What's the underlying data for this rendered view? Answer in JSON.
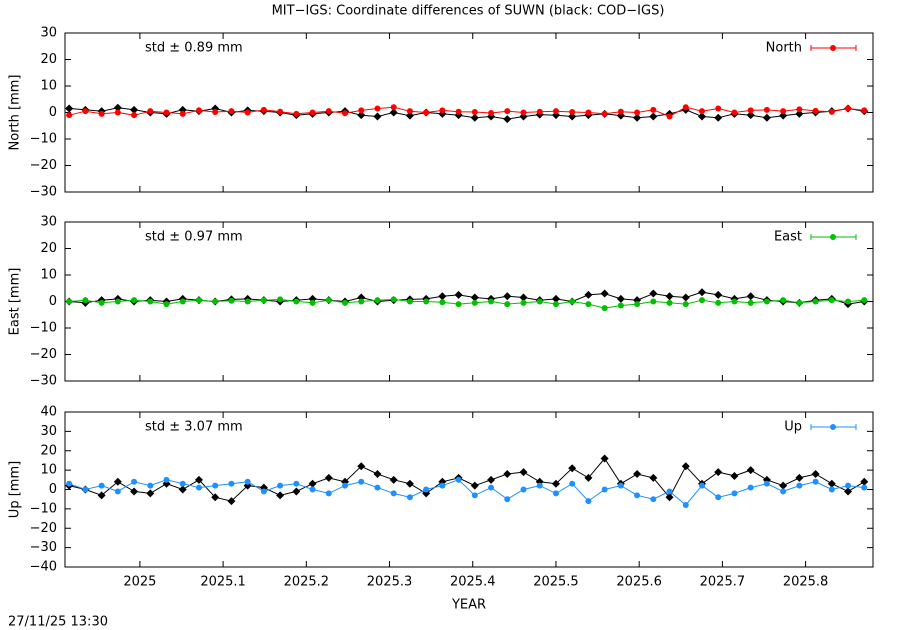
{
  "footer": "27/11/25 13:30",
  "chart_data": [
    {
      "type": "line",
      "title": "MIT−IGS: Coordinate differences of SUWN (black: COD−IGS)",
      "ylabel": "North [mm]",
      "annotation": "std ± 0.89 mm",
      "xlim": [
        2024.91,
        2025.881
      ],
      "xticks": [
        2025,
        2025.1,
        2025.2,
        2025.3,
        2025.4,
        2025.5,
        2025.6,
        2025.7,
        2025.8
      ],
      "ylim": [
        -30,
        30
      ],
      "yticks": [
        {
          "value": -30,
          "label": "−30"
        },
        {
          "value": -20,
          "label": "−20"
        },
        {
          "value": -10,
          "label": "−10"
        },
        0,
        10,
        20,
        30
      ],
      "legend": "top-right",
      "x": [
        2024.915,
        2024.9345,
        2024.954,
        2024.9735,
        2024.993,
        2025.0125,
        2025.032,
        2025.0515,
        2025.071,
        2025.0905,
        2025.11,
        2025.1295,
        2025.149,
        2025.1685,
        2025.188,
        2025.2075,
        2025.227,
        2025.2465,
        2025.266,
        2025.2855,
        2025.305,
        2025.3245,
        2025.344,
        2025.3635,
        2025.383,
        2025.4025,
        2025.422,
        2025.4415,
        2025.461,
        2025.4805,
        2025.5,
        2025.5195,
        2025.539,
        2025.5585,
        2025.578,
        2025.5975,
        2025.617,
        2025.6365,
        2025.656,
        2025.6755,
        2025.695,
        2025.7145,
        2025.734,
        2025.7535,
        2025.773,
        2025.7925,
        2025.812,
        2025.8315,
        2025.851,
        2025.8705
      ],
      "series": [
        {
          "color": "#000000",
          "values": [
            1.5,
            1,
            0.5,
            1.8,
            1,
            0,
            -0.5,
            1,
            0.5,
            1.5,
            0,
            0.8,
            0.5,
            0,
            -1,
            -0.5,
            0,
            0.5,
            -1,
            -1.5,
            0,
            -1.2,
            0,
            -0.5,
            -1,
            -2,
            -1.5,
            -2.5,
            -1.5,
            -0.8,
            -1,
            -1.5,
            -1,
            -0.5,
            -1.2,
            -2,
            -1.5,
            -0.5,
            1,
            -1.5,
            -2,
            -0.5,
            -1,
            -2,
            -1.2,
            -0.5,
            0,
            0.5,
            1.5,
            0.5
          ]
        },
        {
          "name": "North",
          "color": "#ff0000",
          "values": [
            -1,
            0.5,
            -0.5,
            0,
            -1,
            0.5,
            0,
            -0.5,
            0.8,
            0.2,
            0.5,
            0,
            1,
            0.3,
            -0.5,
            0,
            0.5,
            -0.3,
            0.8,
            1.5,
            2,
            0.5,
            0,
            0.8,
            0.3,
            0.2,
            -0.2,
            0.5,
            0,
            0.3,
            0.5,
            0.2,
            0,
            -0.5,
            0.3,
            0,
            1,
            -1.5,
            2,
            0.5,
            1.5,
            0,
            0.8,
            1,
            0.5,
            1.2,
            0.6,
            0.3,
            1.5,
            0.8
          ]
        }
      ]
    },
    {
      "type": "line",
      "ylabel": "East [mm]",
      "annotation": "std ± 0.97 mm",
      "xlim": [
        2024.91,
        2025.881
      ],
      "xticks": [
        2025,
        2025.1,
        2025.2,
        2025.3,
        2025.4,
        2025.5,
        2025.6,
        2025.7,
        2025.8
      ],
      "ylim": [
        -30,
        30
      ],
      "yticks": [
        {
          "value": -30,
          "label": "−30"
        },
        {
          "value": -20,
          "label": "−20"
        },
        {
          "value": -10,
          "label": "−10"
        },
        0,
        10,
        20,
        30
      ],
      "legend": "top-right",
      "x": [
        2024.915,
        2024.9345,
        2024.954,
        2024.9735,
        2024.993,
        2025.0125,
        2025.032,
        2025.0515,
        2025.071,
        2025.0905,
        2025.11,
        2025.1295,
        2025.149,
        2025.1685,
        2025.188,
        2025.2075,
        2025.227,
        2025.2465,
        2025.266,
        2025.2855,
        2025.305,
        2025.3245,
        2025.344,
        2025.3635,
        2025.383,
        2025.4025,
        2025.422,
        2025.4415,
        2025.461,
        2025.4805,
        2025.5,
        2025.5195,
        2025.539,
        2025.5585,
        2025.578,
        2025.5975,
        2025.617,
        2025.6365,
        2025.656,
        2025.6755,
        2025.695,
        2025.7145,
        2025.734,
        2025.7535,
        2025.773,
        2025.7925,
        2025.812,
        2025.8315,
        2025.851,
        2025.8705
      ],
      "series": [
        {
          "color": "#000000",
          "values": [
            0,
            -0.5,
            0.5,
            1,
            0,
            0.5,
            0,
            1,
            0.5,
            0,
            0.8,
            1,
            0.5,
            0,
            0.5,
            1,
            0.5,
            0,
            1.5,
            0,
            0.5,
            0.8,
            1,
            2,
            2.5,
            1.5,
            1,
            2,
            1.5,
            0.5,
            1,
            0,
            2.5,
            3,
            1,
            0.5,
            3,
            2,
            1.5,
            3.5,
            2.5,
            1,
            2,
            0.5,
            0,
            -0.5,
            0.5,
            1,
            -1,
            0
          ]
        },
        {
          "name": "East",
          "color": "#00c000",
          "values": [
            0,
            0.5,
            -0.5,
            0,
            0.5,
            0,
            -1,
            0,
            0.5,
            0,
            0.3,
            0,
            0.5,
            0.8,
            0,
            -0.5,
            0.5,
            -0.5,
            0,
            0.5,
            0.8,
            0,
            0,
            -0.3,
            -1,
            -0.5,
            0,
            -1,
            -0.5,
            0,
            -1,
            0,
            -1,
            -2.5,
            -1.5,
            -1,
            0,
            -0.5,
            -1,
            0.5,
            -0.5,
            0,
            -0.5,
            0,
            0.5,
            -0.5,
            0,
            0.5,
            0,
            0.5
          ]
        }
      ]
    },
    {
      "type": "line",
      "ylabel": "Up [mm]",
      "xlabel": "YEAR",
      "annotation": "std ± 3.07 mm",
      "xlim": [
        2024.91,
        2025.881
      ],
      "xticks": [
        2025,
        2025.1,
        2025.2,
        2025.3,
        2025.4,
        2025.5,
        2025.6,
        2025.7,
        2025.8
      ],
      "xtick_labels": true,
      "ylim": [
        -40,
        40
      ],
      "yticks": [
        {
          "value": -40,
          "label": "−40"
        },
        {
          "value": -30,
          "label": "−30"
        },
        {
          "value": -20,
          "label": "−20"
        },
        {
          "value": -10,
          "label": "−10"
        },
        0,
        10,
        20,
        30,
        40
      ],
      "legend": "top-right",
      "x": [
        2024.915,
        2024.9345,
        2024.954,
        2024.9735,
        2024.993,
        2025.0125,
        2025.032,
        2025.0515,
        2025.071,
        2025.0905,
        2025.11,
        2025.1295,
        2025.149,
        2025.1685,
        2025.188,
        2025.2075,
        2025.227,
        2025.2465,
        2025.266,
        2025.2855,
        2025.305,
        2025.3245,
        2025.344,
        2025.3635,
        2025.383,
        2025.4025,
        2025.422,
        2025.4415,
        2025.461,
        2025.4805,
        2025.5,
        2025.5195,
        2025.539,
        2025.5585,
        2025.578,
        2025.5975,
        2025.617,
        2025.6365,
        2025.656,
        2025.6755,
        2025.695,
        2025.7145,
        2025.734,
        2025.7535,
        2025.773,
        2025.7925,
        2025.812,
        2025.8315,
        2025.851,
        2025.8705
      ],
      "series": [
        {
          "color": "#000000",
          "values": [
            2,
            0,
            -3,
            4,
            -1,
            -2,
            3,
            0,
            5,
            -4,
            -6,
            2,
            1,
            -3,
            -1,
            3,
            6,
            4,
            12,
            8,
            5,
            3,
            -2,
            4,
            6,
            2,
            5,
            8,
            9,
            4,
            3,
            11,
            6,
            16,
            3,
            8,
            6,
            -4,
            12,
            3,
            9,
            7,
            10,
            5,
            2,
            6,
            8,
            3,
            -1,
            4
          ]
        },
        {
          "name": "Up",
          "color": "#1e90ff",
          "values": [
            3,
            0,
            2,
            -1,
            4,
            2,
            5,
            3,
            1,
            2,
            3,
            4,
            -1,
            2,
            3,
            0,
            -2,
            2,
            4,
            1,
            -2,
            -4,
            0,
            2,
            5,
            -3,
            1,
            -5,
            0,
            2,
            -2,
            3,
            -6,
            0,
            2,
            -3,
            -5,
            -1,
            -8,
            2,
            -4,
            -2,
            1,
            3,
            -1,
            2,
            4,
            0,
            2,
            1
          ]
        }
      ]
    }
  ]
}
